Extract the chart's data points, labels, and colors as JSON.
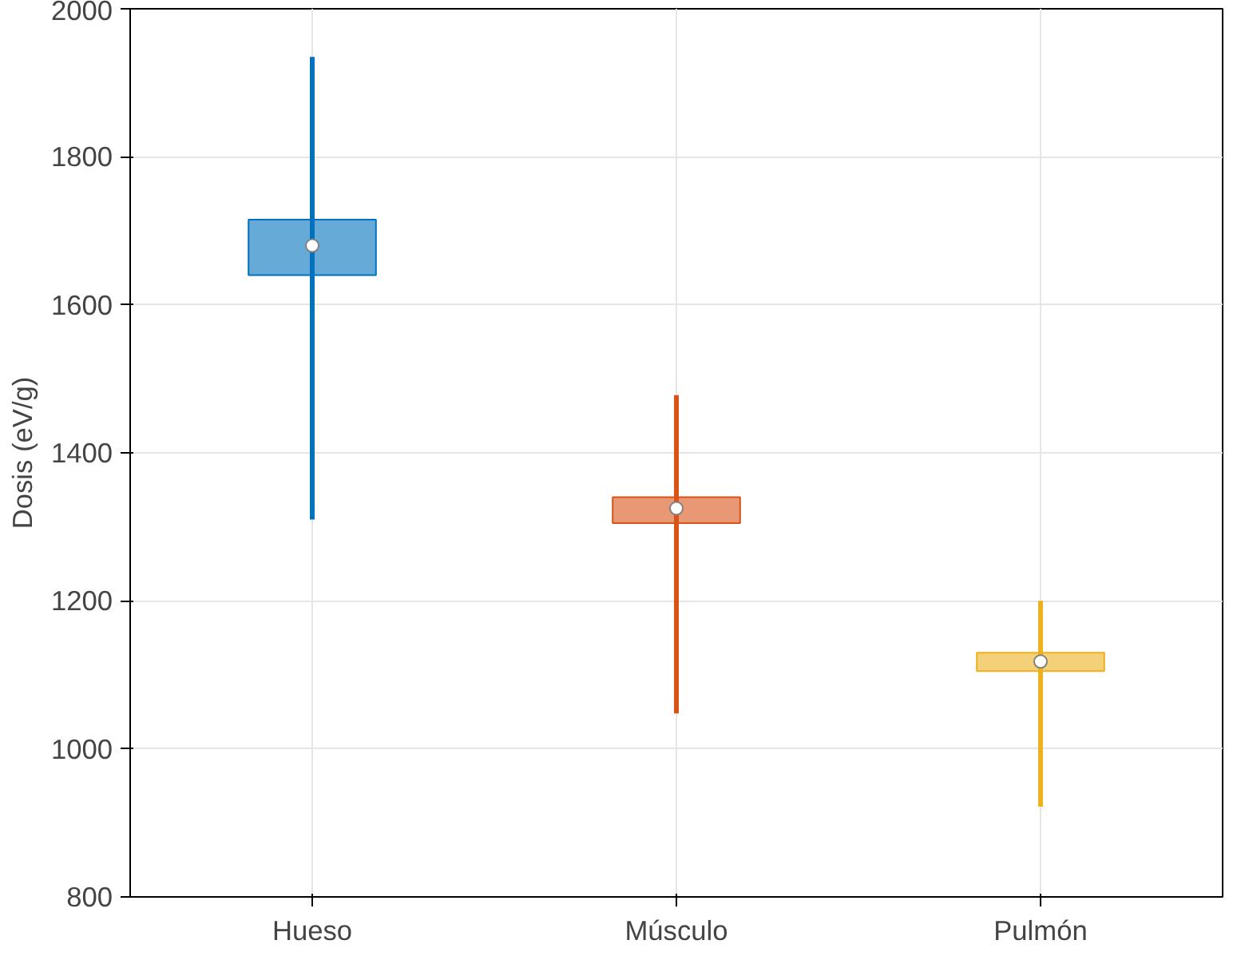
{
  "chart_data": {
    "type": "box",
    "ylabel": "Dosis (eV/g)",
    "categories": [
      "Hueso",
      "Músculo",
      "Pulmón"
    ],
    "boxes": [
      {
        "low": 1310,
        "q1": 1640,
        "median": 1680,
        "q3": 1715,
        "high": 1935
      },
      {
        "low": 1048,
        "q1": 1305,
        "median": 1325,
        "q3": 1340,
        "high": 1478
      },
      {
        "low": 922,
        "q1": 1105,
        "median": 1118,
        "q3": 1130,
        "high": 1200
      }
    ],
    "colors": [
      "#0072bd",
      "#d95319",
      "#edb120"
    ],
    "ylim": [
      800,
      2000
    ],
    "yticks": [
      800,
      1000,
      1200,
      1400,
      1600,
      1800,
      2000
    ],
    "grid": true
  }
}
